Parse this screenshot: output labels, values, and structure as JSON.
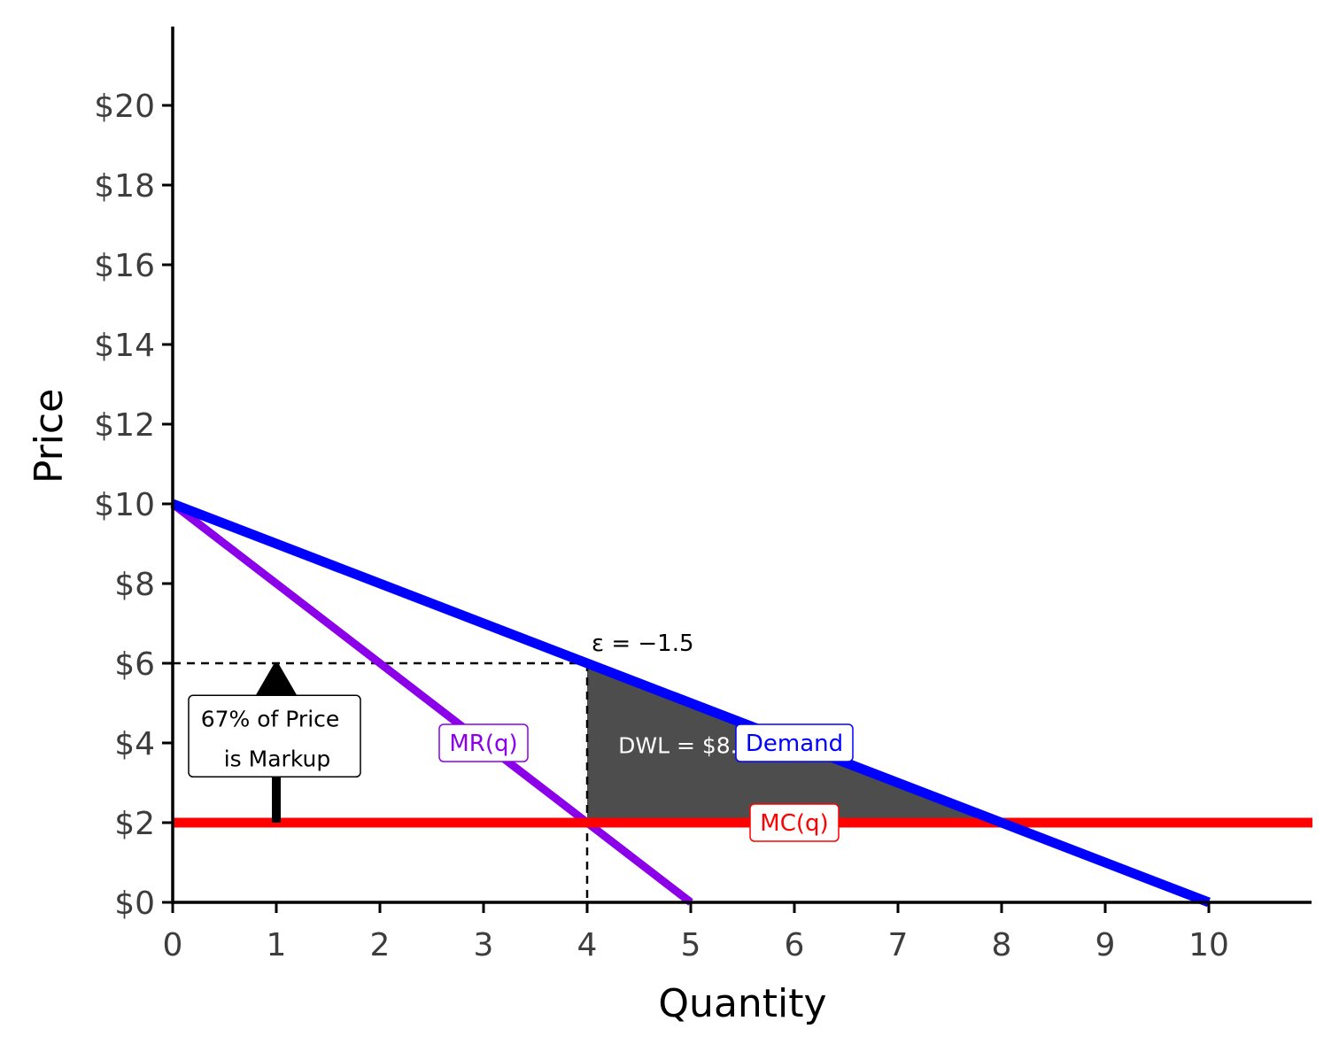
{
  "chart_data": {
    "type": "line",
    "xlabel": "Quantity",
    "ylabel": "Price",
    "xlim": [
      0,
      11
    ],
    "ylim": [
      0,
      22
    ],
    "x_ticks": [
      0,
      1,
      2,
      3,
      4,
      5,
      6,
      7,
      8,
      9,
      10
    ],
    "x_tick_labels": [
      "0",
      "1",
      "2",
      "3",
      "4",
      "5",
      "6",
      "7",
      "8",
      "9",
      "10"
    ],
    "y_ticks": [
      0,
      2,
      4,
      6,
      8,
      10,
      12,
      14,
      16,
      18,
      20
    ],
    "y_tick_labels": [
      "$0",
      "$2",
      "$4",
      "$6",
      "$8",
      "$10",
      "$12",
      "$14",
      "$16",
      "$18",
      "$20"
    ],
    "grid": false,
    "series": [
      {
        "name": "Demand",
        "color": "#0000ff",
        "x": [
          0,
          10
        ],
        "y": [
          10,
          0
        ]
      },
      {
        "name": "MR(q)",
        "color": "#8b00e8",
        "x": [
          0,
          5
        ],
        "y": [
          10,
          0
        ]
      },
      {
        "name": "MC(q)",
        "color": "#ff0000",
        "x": [
          0,
          11
        ],
        "y": [
          2,
          2
        ]
      }
    ],
    "line_labels": [
      {
        "text": "Demand",
        "color": "#0000ff",
        "x": 6.0,
        "y": 4.0
      },
      {
        "text": "MR(q)",
        "color": "#8b00e8",
        "x": 3.0,
        "y": 4.0
      },
      {
        "text": "MC(q)",
        "color": "#ff0000",
        "x": 6.0,
        "y": 2.0
      }
    ],
    "dwl": {
      "label": "DWL = $8.",
      "color": "#4d4d4d",
      "q_monopoly": 4,
      "q_competitive": 8,
      "p_monopoly": 6,
      "mc": 2
    },
    "dashed_guides": {
      "q": 4,
      "p": 6
    },
    "elasticity": "ε = −1.5",
    "markup_note": {
      "line1": "67% of Price",
      "line2": "is Markup",
      "x": 1,
      "y_from": 2,
      "y_to": 6
    }
  }
}
